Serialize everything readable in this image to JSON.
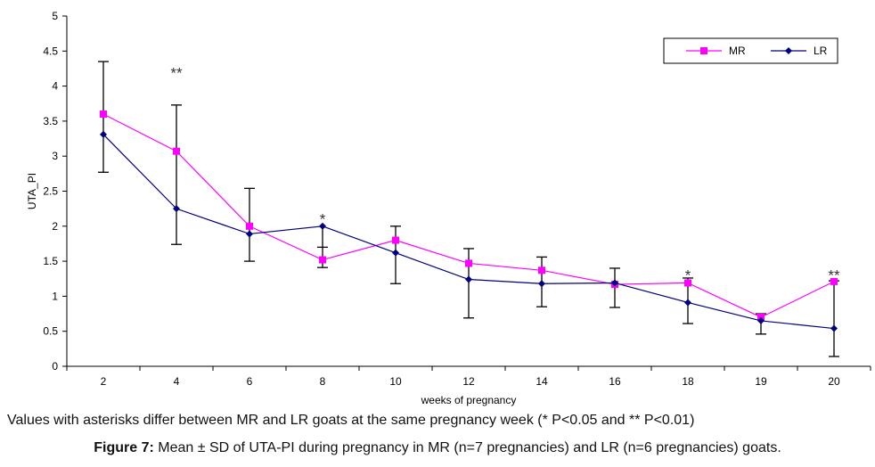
{
  "chart_data": {
    "type": "line",
    "title": "",
    "xlabel": "weeks of pregnancy",
    "ylabel": "UTA_PI",
    "ylim": [
      0,
      5
    ],
    "yticks": [
      "0",
      "0.5",
      "1",
      "1.5",
      "2",
      "2.5",
      "3",
      "3.5",
      "4",
      "4.5",
      "5"
    ],
    "categories": [
      "2",
      "4",
      "6",
      "8",
      "10",
      "12",
      "14",
      "16",
      "18",
      "19",
      "20"
    ],
    "series": [
      {
        "name": "MR",
        "color": "#ff00ff",
        "marker": "square",
        "values": [
          3.6,
          3.07,
          2.0,
          1.52,
          1.8,
          1.47,
          1.37,
          1.17,
          1.19,
          0.7,
          1.21
        ]
      },
      {
        "name": "LR",
        "color": "#000080",
        "marker": "diamond",
        "values": [
          3.31,
          2.25,
          1.89,
          2.0,
          1.62,
          1.24,
          1.18,
          1.19,
          0.91,
          0.65,
          0.54
        ]
      }
    ],
    "error_bars": [
      {
        "week": "2",
        "low": 2.77,
        "high": 4.35
      },
      {
        "week": "4",
        "low": 1.74,
        "high": 3.73
      },
      {
        "week": "6",
        "low": 1.5,
        "high": 2.54
      },
      {
        "week": "8",
        "low": 1.41,
        "high": 1.7
      },
      {
        "week": "10",
        "low": 1.18,
        "high": 2.0
      },
      {
        "week": "12",
        "low": 0.69,
        "high": 1.68
      },
      {
        "week": "14",
        "low": 0.85,
        "high": 1.56
      },
      {
        "week": "16",
        "low": 0.84,
        "high": 1.4
      },
      {
        "week": "18",
        "low": 0.61,
        "high": 1.26
      },
      {
        "week": "19",
        "low": 0.46,
        "high": 0.75
      },
      {
        "week": "20",
        "low": 0.14,
        "high": 1.22
      }
    ],
    "annotations": [
      {
        "text": "**",
        "week": "4",
        "y": 4.22
      },
      {
        "text": "*",
        "week": "8",
        "y": 2.13
      },
      {
        "text": "*",
        "week": "18",
        "y": 1.33
      },
      {
        "text": "**",
        "week": "20",
        "y": 1.33
      }
    ],
    "legend": "top-right",
    "grid": false
  },
  "note": "Values with asterisks differ between MR and LR goats at the same pregnancy week (* P<0.05 and ** P<0.01)",
  "caption": {
    "label": "Figure 7:",
    "text": " Mean ± SD of UTA-PI during pregnancy in MR (n=7 pregnancies) and LR (n=6 pregnancies) goats."
  }
}
